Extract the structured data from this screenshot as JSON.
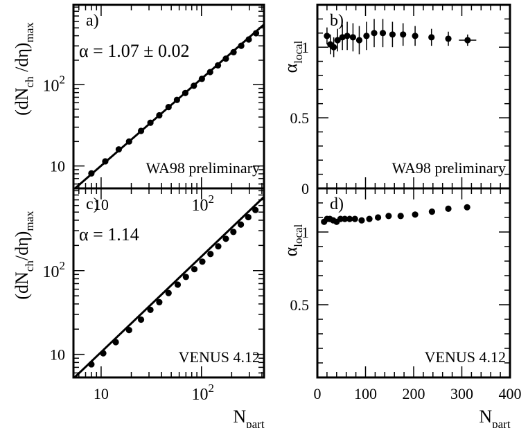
{
  "chart_data": [
    {
      "panel": "a)",
      "type": "scatter",
      "log_x": true,
      "log_y": true,
      "xlim": [
        5.3,
        420
      ],
      "ylim": [
        5.3,
        960
      ],
      "ylabel": {
        "base": "(dN",
        "sub1": "ch",
        "mid": " /dη)",
        "sub2": "max"
      },
      "xticks": [
        {
          "v": 10,
          "label": "10"
        },
        {
          "v": 100,
          "label": "10",
          "exp": "2"
        }
      ],
      "yticks": [
        {
          "v": 10,
          "label": "10"
        },
        {
          "v": 100,
          "label": "10",
          "exp": "2"
        }
      ],
      "annotation": "α = 1.07 ± 0.02",
      "watermark": "WA98 preliminary",
      "fit": {
        "alpha": 1.07,
        "x": [
          5.3,
          420
        ],
        "y": [
          5.1,
          550
        ]
      },
      "series": [
        {
          "x": [
            8,
            11,
            15,
            19,
            25,
            31,
            38,
            47,
            57,
            69,
            84,
            101,
            122,
            146,
            175,
            209,
            249,
            296,
            350
          ],
          "y": [
            8.1,
            11.4,
            16,
            20,
            27,
            34,
            42,
            53,
            65,
            79,
            97,
            118,
            143,
            173,
            209,
            251,
            301,
            360,
            430
          ]
        }
      ]
    },
    {
      "panel": "b)",
      "type": "scatter",
      "log_x": false,
      "log_y": false,
      "xlim": [
        0,
        400
      ],
      "ylim": [
        0,
        1.3
      ],
      "ylabel": {
        "base": "α",
        "sub1": "local"
      },
      "yticks": [
        {
          "v": 0,
          "label": "0"
        },
        {
          "v": 0.5,
          "label": "0.5"
        },
        {
          "v": 1,
          "label": "1"
        }
      ],
      "watermark": "WA98 preliminary",
      "series": [
        {
          "x": [
            20,
            27,
            34,
            42,
            52,
            62,
            74,
            87,
            102,
            118,
            136,
            156,
            178,
            203,
            237,
            272,
            312
          ],
          "y": [
            1.08,
            1.02,
            1.0,
            1.05,
            1.07,
            1.08,
            1.07,
            1.05,
            1.08,
            1.1,
            1.1,
            1.09,
            1.09,
            1.08,
            1.07,
            1.06,
            1.05
          ],
          "yerr": [
            0.06,
            0.07,
            0.07,
            0.08,
            0.09,
            0.1,
            0.1,
            0.1,
            0.1,
            0.1,
            0.1,
            0.09,
            0.08,
            0.07,
            0.06,
            0.05,
            0.04
          ],
          "xerr": [
            0,
            0,
            0,
            0,
            0,
            0,
            0,
            0,
            0,
            0,
            0,
            0,
            0,
            0,
            0,
            0,
            18
          ]
        }
      ]
    },
    {
      "panel": "c)",
      "type": "scatter",
      "log_x": true,
      "log_y": true,
      "xlim": [
        5.3,
        420
      ],
      "ylim": [
        5.3,
        960
      ],
      "ylabel": {
        "base": "(dN",
        "sub1": "ch",
        "mid": "/dη)",
        "sub2": "max"
      },
      "xlabel": {
        "base": "N",
        "sub1": "part"
      },
      "xticks": [
        {
          "v": 10,
          "label": "10"
        },
        {
          "v": 100,
          "label": "10",
          "exp": "2"
        }
      ],
      "yticks": [
        {
          "v": 10,
          "label": "10"
        },
        {
          "v": 100,
          "label": "10",
          "exp": "2"
        }
      ],
      "annotation": "α = 1.14",
      "watermark": "VENUS 4.12",
      "fit": {
        "alpha": 1.14,
        "x": [
          5.3,
          420
        ],
        "y": [
          5.15,
          760
        ]
      },
      "series": [
        {
          "x": [
            8,
            10.5,
            14,
            19,
            25,
            31,
            38,
            47,
            58,
            70,
            85,
            102,
            123,
            147,
            175,
            208,
            247,
            293,
            345
          ],
          "y": [
            7.6,
            10.3,
            14,
            19.5,
            26,
            34,
            42,
            54,
            68,
            84,
            104,
            128,
            158,
            195,
            240,
            290,
            355,
            435,
            530
          ]
        }
      ]
    },
    {
      "panel": "d)",
      "type": "scatter",
      "log_x": false,
      "log_y": false,
      "xlim": [
        0,
        400
      ],
      "ylim": [
        0,
        1.3
      ],
      "ylabel": {
        "base": "α",
        "sub1": "local"
      },
      "xlabel": {
        "base": "N",
        "sub1": "part"
      },
      "xticks": [
        {
          "v": 0,
          "label": "0"
        },
        {
          "v": 100,
          "label": "100"
        },
        {
          "v": 200,
          "label": "200"
        },
        {
          "v": 300,
          "label": "300"
        },
        {
          "v": 400,
          "label": "400"
        }
      ],
      "yticks": [
        {
          "v": 0.5,
          "label": "0.5"
        },
        {
          "v": 1,
          "label": "1"
        }
      ],
      "watermark": "VENUS 4.12",
      "series": [
        {
          "x": [
            14,
            20,
            26,
            33,
            40,
            48,
            57,
            67,
            78,
            92,
            108,
            126,
            148,
            173,
            203,
            238,
            272,
            311
          ],
          "y": [
            1.07,
            1.09,
            1.09,
            1.08,
            1.07,
            1.09,
            1.09,
            1.09,
            1.09,
            1.08,
            1.09,
            1.1,
            1.11,
            1.11,
            1.12,
            1.14,
            1.16,
            1.17
          ]
        }
      ]
    }
  ]
}
